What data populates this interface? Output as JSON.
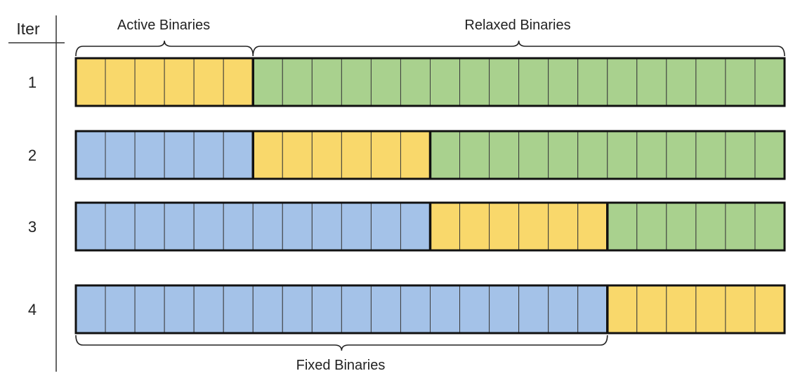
{
  "header": {
    "iter_label": "Iter"
  },
  "labels": {
    "active": "Active Binaries",
    "relaxed": "Relaxed Binaries",
    "fixed": "Fixed Binaries"
  },
  "colors": {
    "fixed": "#a4c2e8",
    "active": "#f9d86b",
    "relaxed": "#a9d18e",
    "border": "#111111",
    "divider": "#3b3b3b"
  },
  "cells_per_row": 24,
  "rows": [
    {
      "iter": "1",
      "segments": [
        {
          "kind": "active",
          "count": 6
        },
        {
          "kind": "relaxed",
          "count": 18
        }
      ]
    },
    {
      "iter": "2",
      "segments": [
        {
          "kind": "fixed",
          "count": 6
        },
        {
          "kind": "active",
          "count": 6
        },
        {
          "kind": "relaxed",
          "count": 12
        }
      ]
    },
    {
      "iter": "3",
      "segments": [
        {
          "kind": "fixed",
          "count": 12
        },
        {
          "kind": "active",
          "count": 6
        },
        {
          "kind": "relaxed",
          "count": 6
        }
      ]
    },
    {
      "iter": "4",
      "segments": [
        {
          "kind": "fixed",
          "count": 18
        },
        {
          "kind": "active",
          "count": 6
        }
      ]
    }
  ]
}
